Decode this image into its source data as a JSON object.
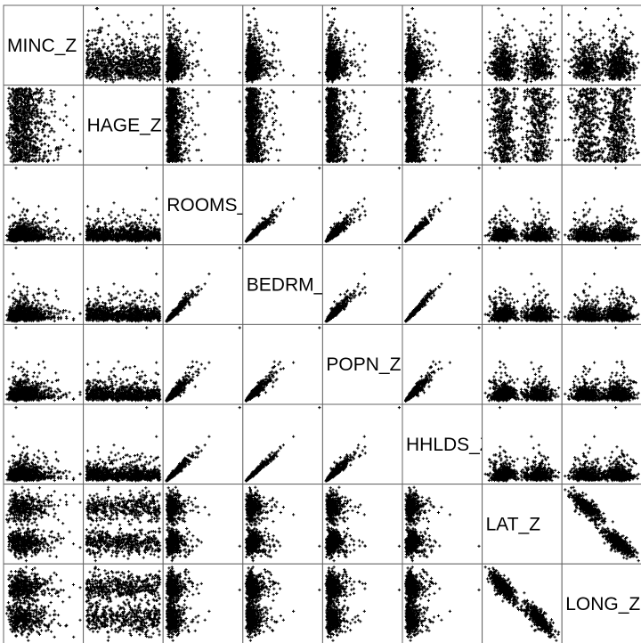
{
  "chart_data": {
    "type": "scatter",
    "variables": [
      "MINC_Z",
      "HAGE_Z",
      "ROOMS_Z",
      "BEDRM_Z",
      "POPN_Z",
      "HHLDS_Z",
      "LAT_Z",
      "LONG_Z"
    ],
    "diagonal_labels": [
      "MINC_Z",
      "HAGE_Z",
      "ROOMS_Z",
      "BEDRM_Z",
      "POPN_Z",
      "HHLDS_Z",
      "LAT_Z",
      "LONG_Z"
    ],
    "layout": "scatterplot-matrix",
    "grid": false,
    "legend": "none",
    "marker": "+",
    "colors": {
      "points": "#000000",
      "cell_border": "#666666",
      "background": "#ffffff"
    },
    "variable_shapes": [
      {
        "name": "MINC_Z",
        "kind": "skewed",
        "skew": 2.0
      },
      {
        "name": "HAGE_Z",
        "kind": "uniform"
      },
      {
        "name": "ROOMS_Z",
        "kind": "heavy",
        "skew": 5.0
      },
      {
        "name": "BEDRM_Z",
        "kind": "heavy",
        "skew": 5.0
      },
      {
        "name": "POPN_Z",
        "kind": "heavy",
        "skew": 6.0
      },
      {
        "name": "HHLDS_Z",
        "kind": "heavy",
        "skew": 5.0
      },
      {
        "name": "LAT_Z",
        "kind": "bimodal"
      },
      {
        "name": "LONG_Z",
        "kind": "bimodal"
      }
    ],
    "correlations": [
      {
        "pair": [
          "ROOMS_Z",
          "BEDRM_Z"
        ],
        "r": 0.93
      },
      {
        "pair": [
          "ROOMS_Z",
          "POPN_Z"
        ],
        "r": 0.86
      },
      {
        "pair": [
          "ROOMS_Z",
          "HHLDS_Z"
        ],
        "r": 0.92
      },
      {
        "pair": [
          "BEDRM_Z",
          "POPN_Z"
        ],
        "r": 0.88
      },
      {
        "pair": [
          "BEDRM_Z",
          "HHLDS_Z"
        ],
        "r": 0.98
      },
      {
        "pair": [
          "POPN_Z",
          "HHLDS_Z"
        ],
        "r": 0.91
      },
      {
        "pair": [
          "LAT_Z",
          "LONG_Z"
        ],
        "r": -0.92
      }
    ]
  }
}
